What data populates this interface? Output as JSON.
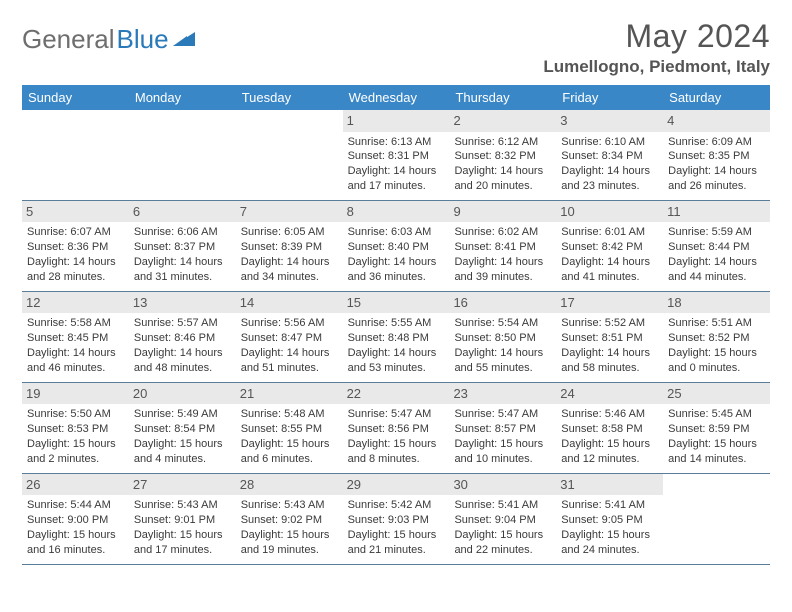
{
  "logo": {
    "text1": "General",
    "text2": "Blue"
  },
  "title": "May 2024",
  "location": "Lumellogno, Piedmont, Italy",
  "day_headers": [
    "Sunday",
    "Monday",
    "Tuesday",
    "Wednesday",
    "Thursday",
    "Friday",
    "Saturday"
  ],
  "colors": {
    "header_bg": "#3a87c8",
    "header_text": "#ffffff",
    "daynum_bg": "#e9e9e9",
    "border": "#5a7d9a",
    "title_color": "#555555",
    "logo_gray": "#6e6e6e",
    "logo_blue": "#2a7ab9"
  },
  "weeks": [
    [
      {
        "n": "",
        "sr": "",
        "ss": "",
        "dl": ""
      },
      {
        "n": "",
        "sr": "",
        "ss": "",
        "dl": ""
      },
      {
        "n": "",
        "sr": "",
        "ss": "",
        "dl": ""
      },
      {
        "n": "1",
        "sr": "Sunrise: 6:13 AM",
        "ss": "Sunset: 8:31 PM",
        "dl": "Daylight: 14 hours and 17 minutes."
      },
      {
        "n": "2",
        "sr": "Sunrise: 6:12 AM",
        "ss": "Sunset: 8:32 PM",
        "dl": "Daylight: 14 hours and 20 minutes."
      },
      {
        "n": "3",
        "sr": "Sunrise: 6:10 AM",
        "ss": "Sunset: 8:34 PM",
        "dl": "Daylight: 14 hours and 23 minutes."
      },
      {
        "n": "4",
        "sr": "Sunrise: 6:09 AM",
        "ss": "Sunset: 8:35 PM",
        "dl": "Daylight: 14 hours and 26 minutes."
      }
    ],
    [
      {
        "n": "5",
        "sr": "Sunrise: 6:07 AM",
        "ss": "Sunset: 8:36 PM",
        "dl": "Daylight: 14 hours and 28 minutes."
      },
      {
        "n": "6",
        "sr": "Sunrise: 6:06 AM",
        "ss": "Sunset: 8:37 PM",
        "dl": "Daylight: 14 hours and 31 minutes."
      },
      {
        "n": "7",
        "sr": "Sunrise: 6:05 AM",
        "ss": "Sunset: 8:39 PM",
        "dl": "Daylight: 14 hours and 34 minutes."
      },
      {
        "n": "8",
        "sr": "Sunrise: 6:03 AM",
        "ss": "Sunset: 8:40 PM",
        "dl": "Daylight: 14 hours and 36 minutes."
      },
      {
        "n": "9",
        "sr": "Sunrise: 6:02 AM",
        "ss": "Sunset: 8:41 PM",
        "dl": "Daylight: 14 hours and 39 minutes."
      },
      {
        "n": "10",
        "sr": "Sunrise: 6:01 AM",
        "ss": "Sunset: 8:42 PM",
        "dl": "Daylight: 14 hours and 41 minutes."
      },
      {
        "n": "11",
        "sr": "Sunrise: 5:59 AM",
        "ss": "Sunset: 8:44 PM",
        "dl": "Daylight: 14 hours and 44 minutes."
      }
    ],
    [
      {
        "n": "12",
        "sr": "Sunrise: 5:58 AM",
        "ss": "Sunset: 8:45 PM",
        "dl": "Daylight: 14 hours and 46 minutes."
      },
      {
        "n": "13",
        "sr": "Sunrise: 5:57 AM",
        "ss": "Sunset: 8:46 PM",
        "dl": "Daylight: 14 hours and 48 minutes."
      },
      {
        "n": "14",
        "sr": "Sunrise: 5:56 AM",
        "ss": "Sunset: 8:47 PM",
        "dl": "Daylight: 14 hours and 51 minutes."
      },
      {
        "n": "15",
        "sr": "Sunrise: 5:55 AM",
        "ss": "Sunset: 8:48 PM",
        "dl": "Daylight: 14 hours and 53 minutes."
      },
      {
        "n": "16",
        "sr": "Sunrise: 5:54 AM",
        "ss": "Sunset: 8:50 PM",
        "dl": "Daylight: 14 hours and 55 minutes."
      },
      {
        "n": "17",
        "sr": "Sunrise: 5:52 AM",
        "ss": "Sunset: 8:51 PM",
        "dl": "Daylight: 14 hours and 58 minutes."
      },
      {
        "n": "18",
        "sr": "Sunrise: 5:51 AM",
        "ss": "Sunset: 8:52 PM",
        "dl": "Daylight: 15 hours and 0 minutes."
      }
    ],
    [
      {
        "n": "19",
        "sr": "Sunrise: 5:50 AM",
        "ss": "Sunset: 8:53 PM",
        "dl": "Daylight: 15 hours and 2 minutes."
      },
      {
        "n": "20",
        "sr": "Sunrise: 5:49 AM",
        "ss": "Sunset: 8:54 PM",
        "dl": "Daylight: 15 hours and 4 minutes."
      },
      {
        "n": "21",
        "sr": "Sunrise: 5:48 AM",
        "ss": "Sunset: 8:55 PM",
        "dl": "Daylight: 15 hours and 6 minutes."
      },
      {
        "n": "22",
        "sr": "Sunrise: 5:47 AM",
        "ss": "Sunset: 8:56 PM",
        "dl": "Daylight: 15 hours and 8 minutes."
      },
      {
        "n": "23",
        "sr": "Sunrise: 5:47 AM",
        "ss": "Sunset: 8:57 PM",
        "dl": "Daylight: 15 hours and 10 minutes."
      },
      {
        "n": "24",
        "sr": "Sunrise: 5:46 AM",
        "ss": "Sunset: 8:58 PM",
        "dl": "Daylight: 15 hours and 12 minutes."
      },
      {
        "n": "25",
        "sr": "Sunrise: 5:45 AM",
        "ss": "Sunset: 8:59 PM",
        "dl": "Daylight: 15 hours and 14 minutes."
      }
    ],
    [
      {
        "n": "26",
        "sr": "Sunrise: 5:44 AM",
        "ss": "Sunset: 9:00 PM",
        "dl": "Daylight: 15 hours and 16 minutes."
      },
      {
        "n": "27",
        "sr": "Sunrise: 5:43 AM",
        "ss": "Sunset: 9:01 PM",
        "dl": "Daylight: 15 hours and 17 minutes."
      },
      {
        "n": "28",
        "sr": "Sunrise: 5:43 AM",
        "ss": "Sunset: 9:02 PM",
        "dl": "Daylight: 15 hours and 19 minutes."
      },
      {
        "n": "29",
        "sr": "Sunrise: 5:42 AM",
        "ss": "Sunset: 9:03 PM",
        "dl": "Daylight: 15 hours and 21 minutes."
      },
      {
        "n": "30",
        "sr": "Sunrise: 5:41 AM",
        "ss": "Sunset: 9:04 PM",
        "dl": "Daylight: 15 hours and 22 minutes."
      },
      {
        "n": "31",
        "sr": "Sunrise: 5:41 AM",
        "ss": "Sunset: 9:05 PM",
        "dl": "Daylight: 15 hours and 24 minutes."
      },
      {
        "n": "",
        "sr": "",
        "ss": "",
        "dl": ""
      }
    ]
  ]
}
